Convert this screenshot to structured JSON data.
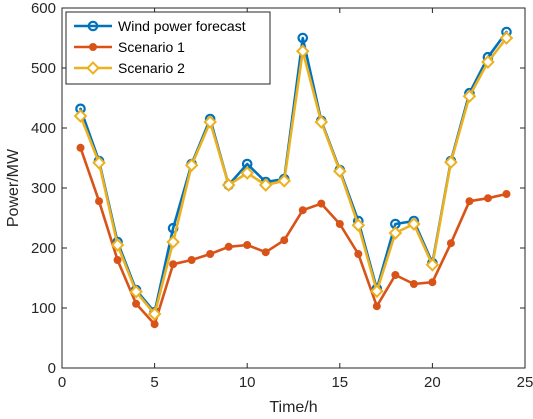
{
  "chart_data": {
    "type": "line",
    "title": "",
    "xlabel": "Time/h",
    "ylabel": "Power/MW",
    "xlim": [
      0,
      25
    ],
    "ylim": [
      0,
      600
    ],
    "xticks": [
      0,
      5,
      10,
      15,
      20,
      25
    ],
    "yticks": [
      0,
      100,
      200,
      300,
      400,
      500,
      600
    ],
    "grid": false,
    "legend_position": "top-left",
    "x": [
      1,
      2,
      3,
      4,
      5,
      6,
      7,
      8,
      9,
      10,
      11,
      12,
      13,
      14,
      15,
      16,
      17,
      18,
      19,
      20,
      21,
      22,
      23,
      24
    ],
    "series": [
      {
        "name": "Wind power forecast",
        "color": "#0072BD",
        "marker": "circle",
        "values": [
          432,
          345,
          210,
          130,
          93,
          233,
          340,
          415,
          305,
          340,
          310,
          315,
          550,
          412,
          330,
          245,
          132,
          240,
          245,
          175,
          345,
          458,
          518,
          560
        ]
      },
      {
        "name": "Scenario 1",
        "color": "#D95319",
        "marker": "filled-circle",
        "values": [
          367,
          278,
          180,
          107,
          73,
          173,
          180,
          190,
          202,
          205,
          193,
          213,
          263,
          274,
          240,
          190,
          103,
          155,
          140,
          143,
          208,
          278,
          283,
          290
        ]
      },
      {
        "name": "Scenario 2",
        "color": "#EDB120",
        "marker": "diamond",
        "values": [
          420,
          342,
          205,
          127,
          90,
          210,
          338,
          410,
          305,
          325,
          305,
          312,
          528,
          410,
          328,
          238,
          128,
          225,
          240,
          172,
          343,
          453,
          510,
          550
        ]
      }
    ]
  }
}
